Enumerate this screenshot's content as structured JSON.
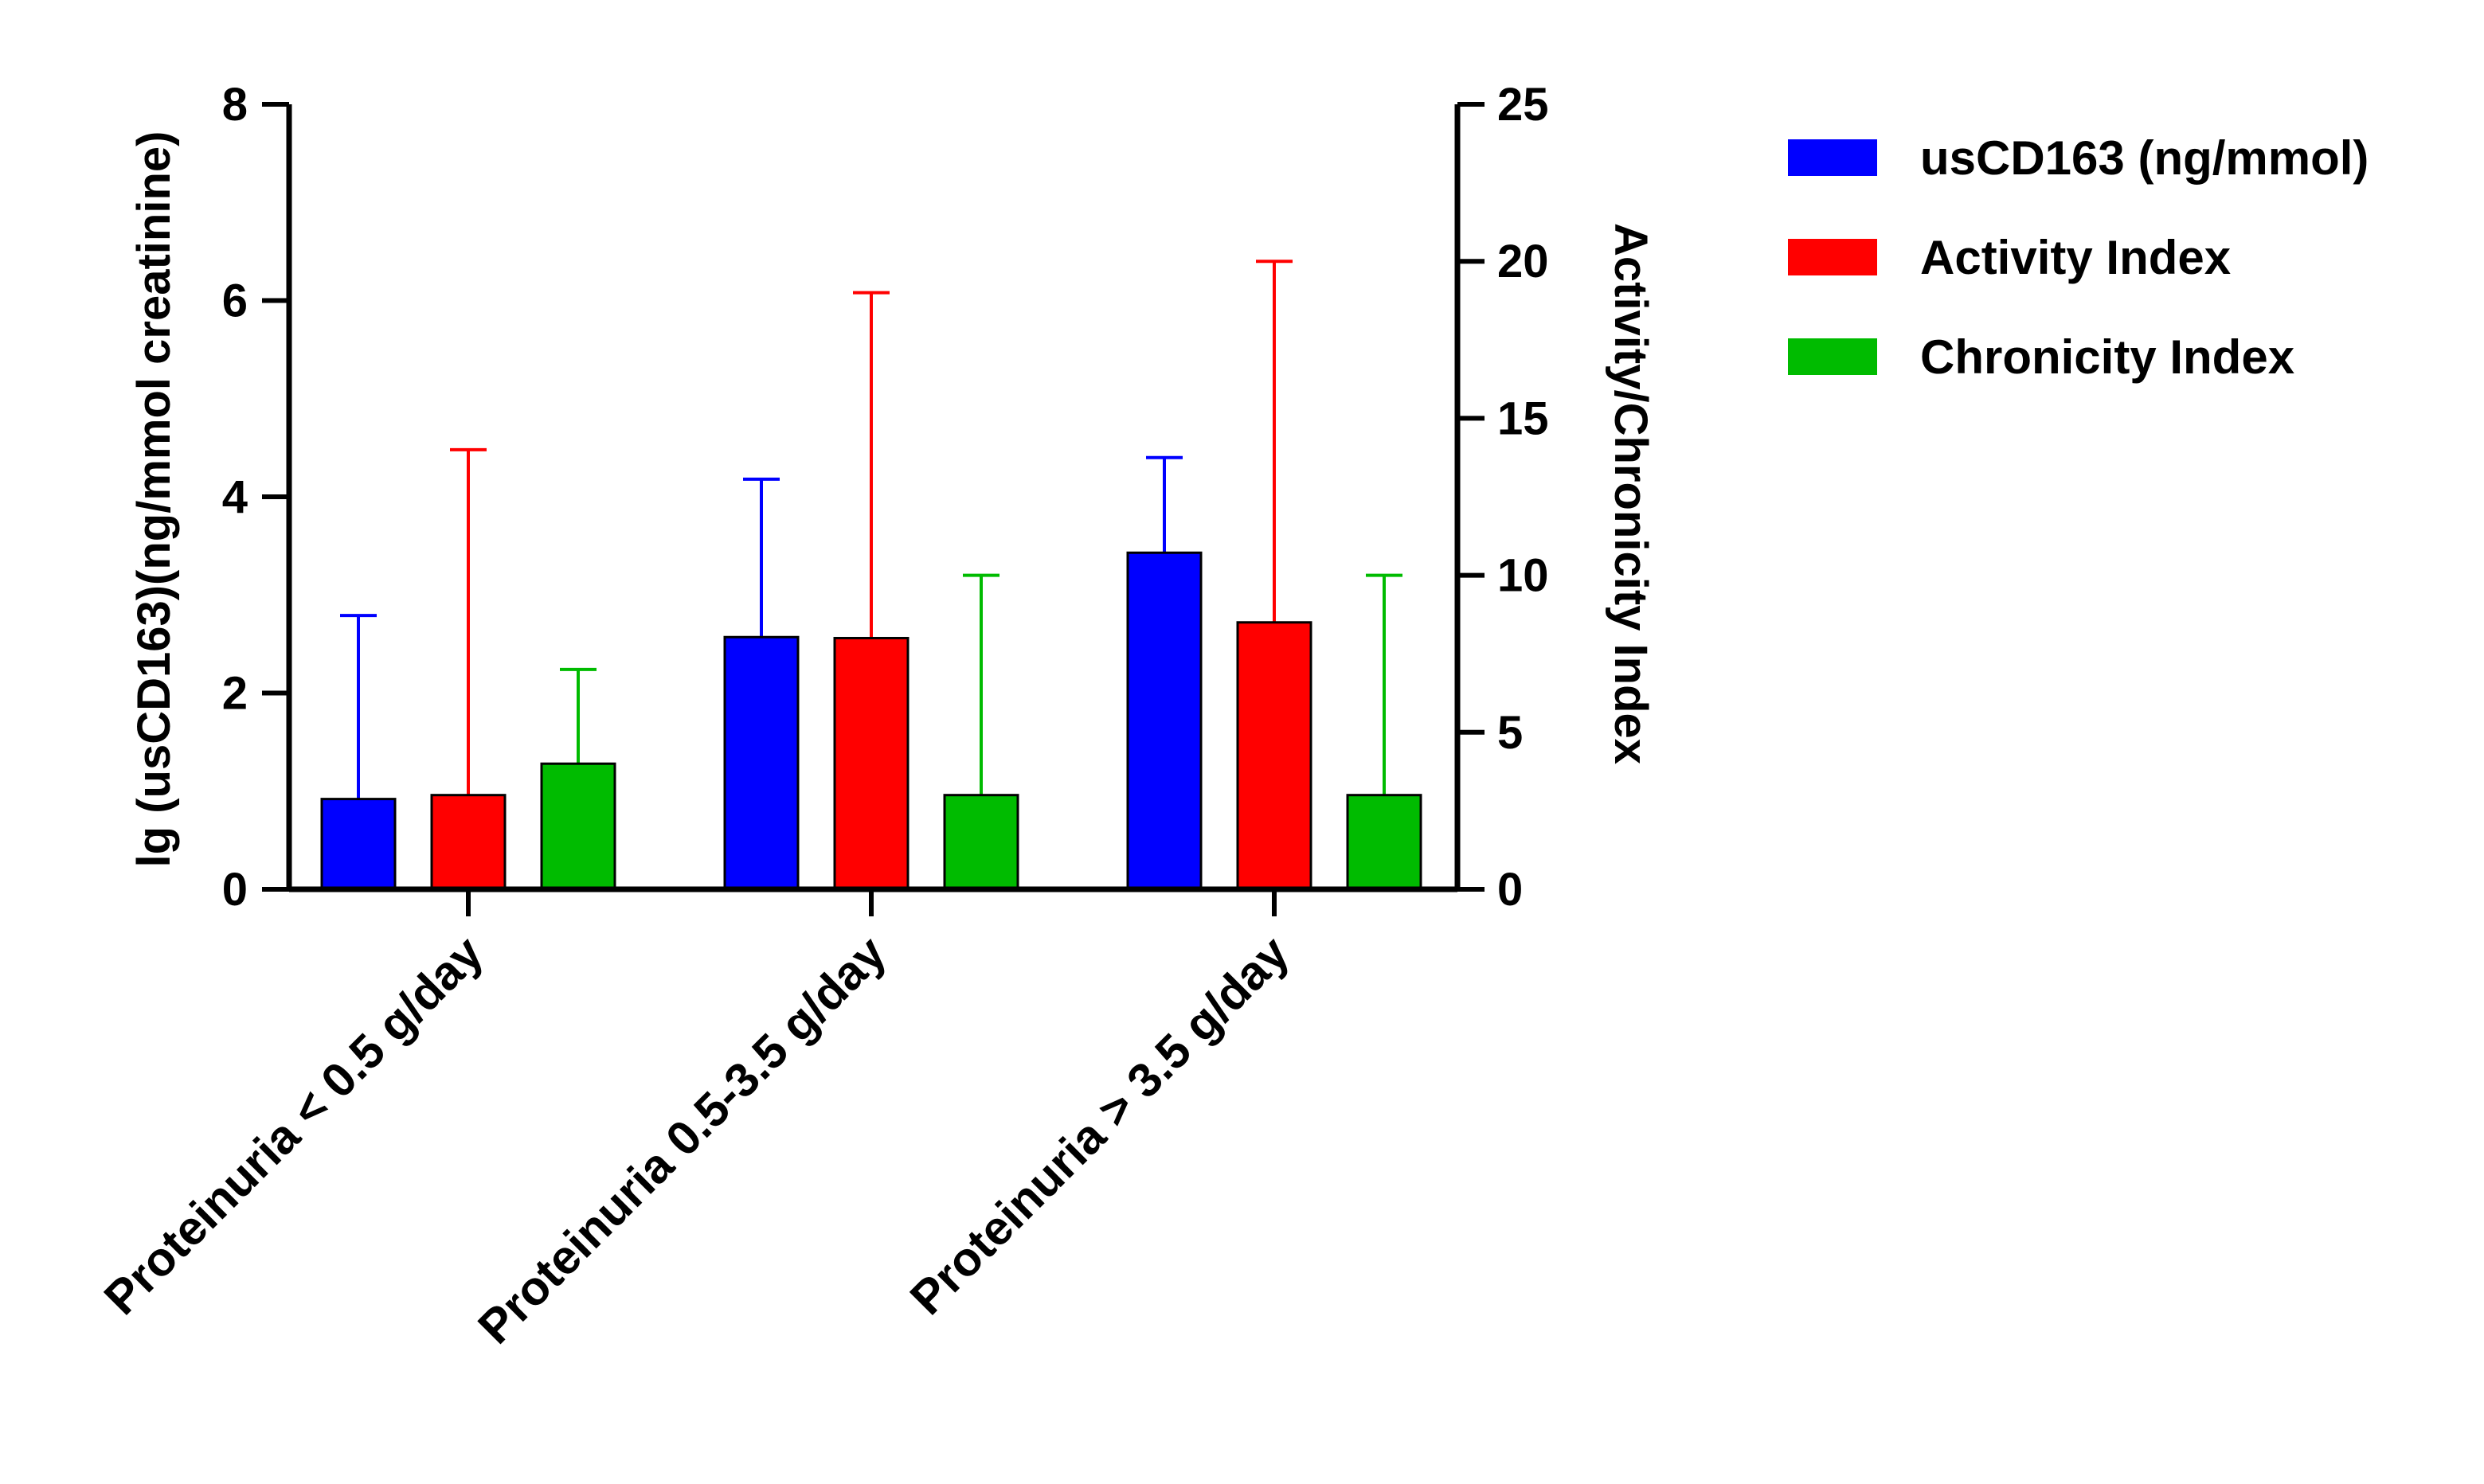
{
  "chart_data": {
    "type": "bar",
    "categories": [
      "Proteinuria < 0.5 g/day",
      "Proteinuria 0.5-3.5 g/day",
      "Proteinuria > 3.5 g/day"
    ],
    "series": [
      {
        "name": "usCD163 (ng/mmol)",
        "axis": "left",
        "color": "#0000ff",
        "values": [
          0.92,
          2.57,
          3.43
        ],
        "error_upper": [
          2.79,
          4.18,
          4.4
        ]
      },
      {
        "name": "Activity Index",
        "axis": "right",
        "color": "#ff0000",
        "values": [
          3.0,
          8.0,
          8.5
        ],
        "error_upper": [
          14.0,
          19.0,
          20.0
        ]
      },
      {
        "name": "Chronicity Index",
        "axis": "right",
        "color": "#00bb00",
        "values": [
          4.0,
          3.0,
          3.0
        ],
        "error_upper": [
          7.0,
          10.0,
          10.0
        ]
      }
    ],
    "ylabel_left": "lg (usCD163)(ng/mmol creatinine)",
    "ylabel_right": "Activity/Chronicity Index",
    "ylim_left": [
      0,
      8
    ],
    "ylim_right": [
      0,
      25
    ],
    "yticks_left": [
      "0",
      "2",
      "4",
      "6",
      "8"
    ],
    "yticks_right": [
      "0",
      "5",
      "10",
      "15",
      "20",
      "25"
    ],
    "legend_position": "top-right",
    "grid": false
  }
}
